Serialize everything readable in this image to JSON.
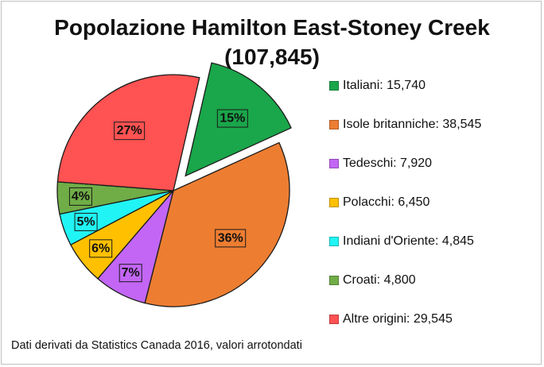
{
  "header": {
    "title_line1": "Popolazione Hamilton East-Stoney Creek",
    "title_line2": "(107,845)"
  },
  "footnote": "Dati derivati da Statistics Canada 2016, valori arrotondati",
  "chart_data": {
    "type": "pie",
    "title": "Popolazione Hamilton East-Stoney Creek (107,845)",
    "total": 107845,
    "legend_position": "right",
    "exploded": [
      "Italiani"
    ],
    "slices": [
      {
        "name": "Italiani",
        "value": 15740,
        "percent_label": "15%",
        "legend_label": "Italiani: 15,740",
        "color": "#1aa64a"
      },
      {
        "name": "Isole britanniche",
        "value": 38545,
        "percent_label": "36%",
        "legend_label": "Isole britanniche: 38,545",
        "color": "#ed7d31"
      },
      {
        "name": "Tedeschi",
        "value": 7920,
        "percent_label": "7%",
        "legend_label": "Tedeschi: 7,920",
        "color": "#c366f5"
      },
      {
        "name": "Polacchi",
        "value": 6450,
        "percent_label": "6%",
        "legend_label": "Polacchi: 6,450",
        "color": "#ffc000"
      },
      {
        "name": "Indiani d'Oriente",
        "value": 4845,
        "percent_label": "5%",
        "legend_label": "Indiani d'Oriente: 4,845",
        "color": "#21f4f4"
      },
      {
        "name": "Croati",
        "value": 4800,
        "percent_label": "4%",
        "legend_label": "Croati: 4,800",
        "color": "#70ad47"
      },
      {
        "name": "Altre origini",
        "value": 29545,
        "percent_label": "27%",
        "legend_label": "Altre origini: 29,545",
        "color": "#ff5252"
      }
    ]
  }
}
